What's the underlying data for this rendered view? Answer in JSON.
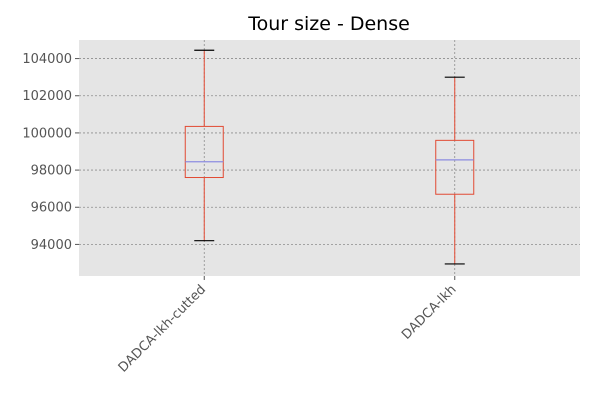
{
  "chart_data": {
    "type": "boxplot",
    "title": "Tour size - Dense",
    "xlabel": "",
    "ylabel": "",
    "categories": [
      "DADCA-lkh-cutted",
      "DADCA-lkh"
    ],
    "boxes": [
      {
        "category": "DADCA-lkh-cutted",
        "whisker_low": 94200,
        "q1": 97600,
        "median": 98450,
        "q3": 100350,
        "whisker_high": 104450
      },
      {
        "category": "DADCA-lkh",
        "whisker_low": 92950,
        "q1": 96700,
        "median": 98550,
        "q3": 99600,
        "whisker_high": 103000
      }
    ],
    "y_ticks": [
      94000,
      96000,
      98000,
      100000,
      102000,
      104000
    ],
    "ylim": [
      92300,
      105000
    ],
    "grid": true,
    "legend": "none",
    "x_tick_rotation": 45
  },
  "colors": {
    "plot_background": "#e5e5e5",
    "grid": "#8c8c8c",
    "box": "#e24a33",
    "median": "#8c8ce0",
    "caps": "#000000",
    "tick_text": "#555555"
  }
}
